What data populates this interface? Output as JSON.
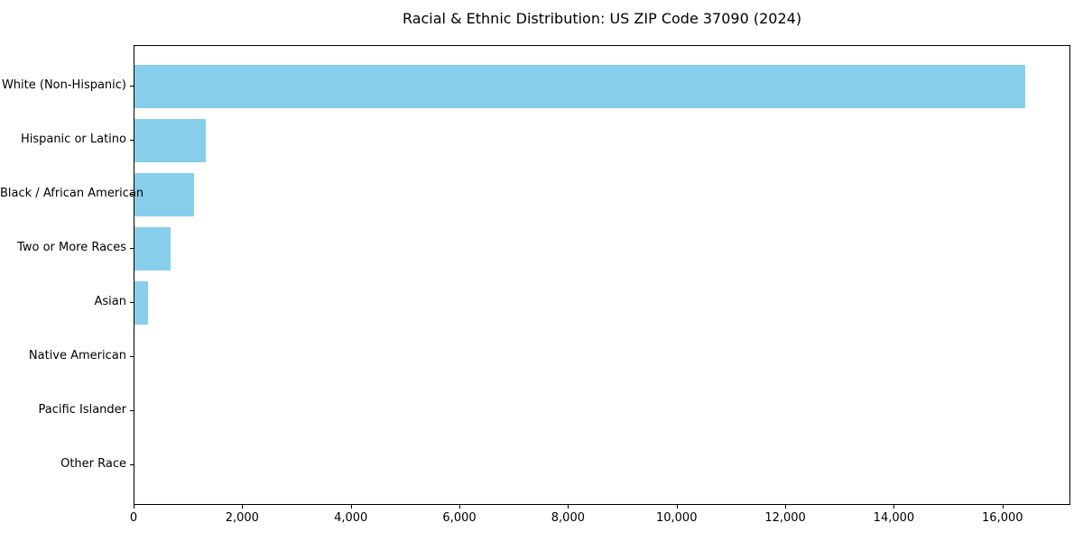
{
  "chart_data": {
    "type": "bar",
    "orientation": "horizontal",
    "title": "Racial & Ethnic Distribution: US ZIP Code 37090 (2024)",
    "categories": [
      "White (Non-Hispanic)",
      "Hispanic or Latino",
      "Black / African American",
      "Two or More Races",
      "Asian",
      "Native American",
      "Pacific Islander",
      "Other Race"
    ],
    "values": [
      16430,
      1315,
      1095,
      660,
      255,
      0,
      0,
      0
    ],
    "xlabel": "",
    "ylabel": "",
    "xlim": [
      0,
      17250
    ],
    "xticks": [
      0,
      2000,
      4000,
      6000,
      8000,
      10000,
      12000,
      14000,
      16000
    ],
    "xtick_labels": [
      "0",
      "2,000",
      "4,000",
      "6,000",
      "8,000",
      "10,000",
      "12,000",
      "14,000",
      "16,000"
    ],
    "grid": false,
    "legend": "none",
    "bar_color": "#87CEEB",
    "frame_color": "#000000",
    "background": "#ffffff"
  }
}
